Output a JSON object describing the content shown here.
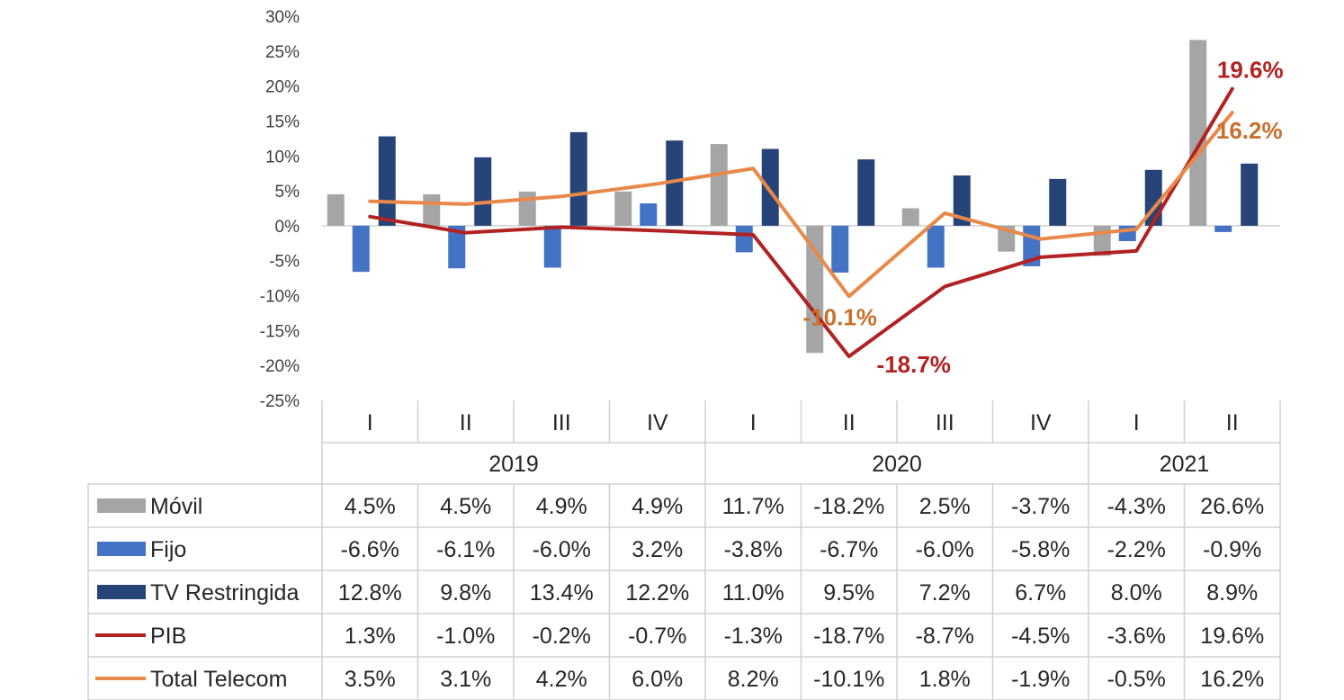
{
  "chart_data": {
    "type": "bar",
    "title": "",
    "xlabel": "",
    "ylabel": "",
    "ylim": [
      -25,
      30
    ],
    "yticks": [
      "30%",
      "25%",
      "20%",
      "15%",
      "10%",
      "5%",
      "0%",
      "-5%",
      "-10%",
      "-15%",
      "-20%",
      "-25%"
    ],
    "ytick_values": [
      30,
      25,
      20,
      15,
      10,
      5,
      0,
      -5,
      -10,
      -15,
      -20,
      -25
    ],
    "categories": [
      "I",
      "II",
      "III",
      "IV",
      "I",
      "II",
      "III",
      "IV",
      "I",
      "II"
    ],
    "years": [
      {
        "label": "2019",
        "span": 4
      },
      {
        "label": "2020",
        "span": 4
      },
      {
        "label": "2021",
        "span": 2
      }
    ],
    "grid": false,
    "legend": "data-table",
    "series": [
      {
        "name": "Móvil",
        "kind": "bar",
        "color": "#A5A5A5",
        "values": [
          4.5,
          4.5,
          4.9,
          4.9,
          11.7,
          -18.2,
          2.5,
          -3.7,
          -4.3,
          26.6
        ],
        "labels": [
          "4.5%",
          "4.5%",
          "4.9%",
          "4.9%",
          "11.7%",
          "-18.2%",
          "2.5%",
          "-3.7%",
          "-4.3%",
          "26.6%"
        ]
      },
      {
        "name": "Fijo",
        "kind": "bar",
        "color": "#4472C4",
        "values": [
          -6.6,
          -6.1,
          -6.0,
          3.2,
          -3.8,
          -6.7,
          -6.0,
          -5.8,
          -2.2,
          -0.9
        ],
        "labels": [
          "-6.6%",
          "-6.1%",
          "-6.0%",
          "3.2%",
          "-3.8%",
          "-6.7%",
          "-6.0%",
          "-5.8%",
          "-2.2%",
          "-0.9%"
        ]
      },
      {
        "name": "TV Restringida",
        "kind": "bar",
        "color": "#264478",
        "values": [
          12.8,
          9.8,
          13.4,
          12.2,
          11.0,
          9.5,
          7.2,
          6.7,
          8.0,
          8.9
        ],
        "labels": [
          "12.8%",
          "9.8%",
          "13.4%",
          "12.2%",
          "11.0%",
          "9.5%",
          "7.2%",
          "6.7%",
          "8.0%",
          "8.9%"
        ]
      },
      {
        "name": "PIB",
        "kind": "line",
        "color": "#B22222",
        "values": [
          1.3,
          -1.0,
          -0.2,
          -0.7,
          -1.3,
          -18.7,
          -8.7,
          -4.5,
          -3.6,
          19.6
        ],
        "labels": [
          "1.3%",
          "-1.0%",
          "-0.2%",
          "-0.7%",
          "-1.3%",
          "-18.7%",
          "-8.7%",
          "-4.5%",
          "-3.6%",
          "19.6%"
        ]
      },
      {
        "name": "Total Telecom",
        "kind": "line",
        "color": "#E8894A",
        "values": [
          3.5,
          3.1,
          4.2,
          6.0,
          8.2,
          -10.1,
          1.8,
          -1.9,
          -0.5,
          16.2
        ],
        "labels": [
          "3.5%",
          "3.1%",
          "4.2%",
          "6.0%",
          "8.2%",
          "-10.1%",
          "1.8%",
          "-1.9%",
          "-0.5%",
          "16.2%"
        ]
      }
    ],
    "annotations": [
      {
        "series": 3,
        "index": 9,
        "text": "19.6%",
        "color": "#B22222"
      },
      {
        "series": 4,
        "index": 9,
        "text": "16.2%",
        "color": "#C8702E"
      },
      {
        "series": 4,
        "index": 5,
        "text": "-10.1%",
        "color": "#C8702E"
      },
      {
        "series": 3,
        "index": 5,
        "text": "-18.7%",
        "color": "#B22222"
      }
    ]
  }
}
